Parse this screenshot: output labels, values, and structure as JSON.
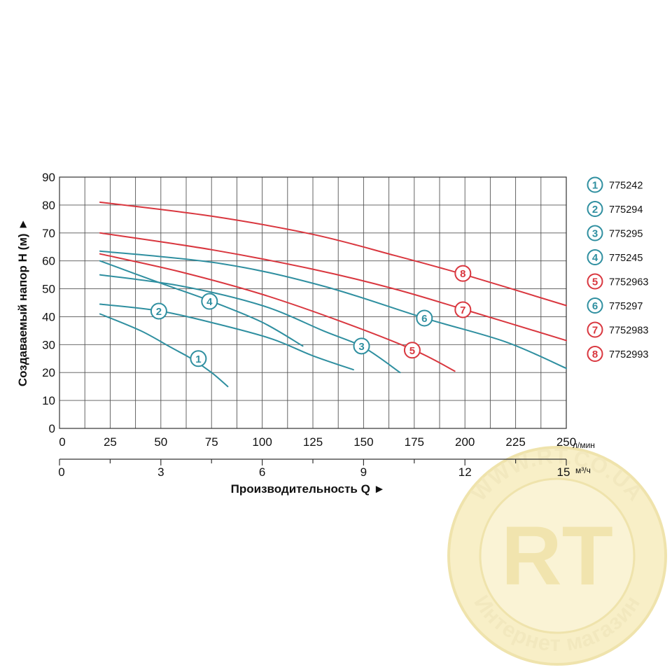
{
  "chart_data": {
    "type": "line",
    "xlabel": "Производительность Q ►",
    "ylabel": "Создаваемый напор H (м) ►",
    "x_unit": "л/мин",
    "x2_unit": "м³/ч",
    "xlim": [
      0,
      250
    ],
    "ylim": [
      0,
      90
    ],
    "x_ticks": [
      0,
      25,
      50,
      75,
      100,
      125,
      150,
      175,
      200,
      225,
      250
    ],
    "x2_ticks": [
      0,
      3,
      6,
      9,
      12,
      15
    ],
    "y_ticks": [
      0,
      10,
      20,
      30,
      40,
      50,
      60,
      70,
      80,
      90
    ],
    "grid": true,
    "legend_position": "right",
    "series": [
      {
        "name": "775242",
        "label": "1",
        "color": "#2f8fa0",
        "points": [
          [
            20,
            41
          ],
          [
            40,
            35
          ],
          [
            55,
            29
          ],
          [
            65,
            25
          ],
          [
            75,
            20
          ],
          [
            83,
            15
          ]
        ],
        "badge_at": [
          68.5,
          25
        ]
      },
      {
        "name": "775294",
        "label": "2",
        "color": "#2f8fa0",
        "points": [
          [
            20,
            44.5
          ],
          [
            50,
            42
          ],
          [
            80,
            37
          ],
          [
            105,
            32
          ],
          [
            125,
            26
          ],
          [
            145,
            21
          ]
        ],
        "badge_at": [
          49,
          42
        ]
      },
      {
        "name": "775295",
        "label": "3",
        "color": "#2f8fa0",
        "points": [
          [
            20,
            55
          ],
          [
            60,
            51
          ],
          [
            100,
            44
          ],
          [
            130,
            35
          ],
          [
            150,
            29
          ],
          [
            168,
            20
          ]
        ],
        "badge_at": [
          149,
          29.5
        ]
      },
      {
        "name": "775245",
        "label": "4",
        "color": "#2f8fa0",
        "points": [
          [
            20,
            60
          ],
          [
            50,
            52
          ],
          [
            75,
            45.5
          ],
          [
            100,
            38
          ],
          [
            120,
            29.5
          ]
        ],
        "badge_at": [
          74,
          45.5
        ]
      },
      {
        "name": "7752963",
        "label": "5",
        "color": "#d9373f",
        "points": [
          [
            20,
            62.5
          ],
          [
            60,
            56
          ],
          [
            100,
            48
          ],
          [
            140,
            38
          ],
          [
            175,
            28
          ],
          [
            195,
            20.5
          ]
        ],
        "badge_at": [
          174,
          28
        ]
      },
      {
        "name": "775297",
        "label": "6",
        "color": "#2f8fa0",
        "points": [
          [
            20,
            63.5
          ],
          [
            80,
            59
          ],
          [
            130,
            51
          ],
          [
            180,
            39.5
          ],
          [
            220,
            31
          ],
          [
            250,
            21.5
          ]
        ],
        "badge_at": [
          180,
          39.5
        ]
      },
      {
        "name": "7752983",
        "label": "7",
        "color": "#d9373f",
        "points": [
          [
            20,
            70
          ],
          [
            75,
            64
          ],
          [
            125,
            57
          ],
          [
            165,
            50
          ],
          [
            200,
            42.5
          ],
          [
            250,
            31.5
          ]
        ],
        "badge_at": [
          199,
          42.5
        ]
      },
      {
        "name": "7752993",
        "label": "8",
        "color": "#d9373f",
        "points": [
          [
            20,
            81
          ],
          [
            75,
            76
          ],
          [
            125,
            69.5
          ],
          [
            165,
            62
          ],
          [
            200,
            55
          ],
          [
            250,
            44
          ]
        ],
        "badge_at": [
          199,
          55.5
        ]
      }
    ]
  },
  "watermark": {
    "top_text": "WWW.RT.CO.UA",
    "logo_text": "RT",
    "bottom_text": "Интернет магазин",
    "color": "#e9d46a"
  }
}
